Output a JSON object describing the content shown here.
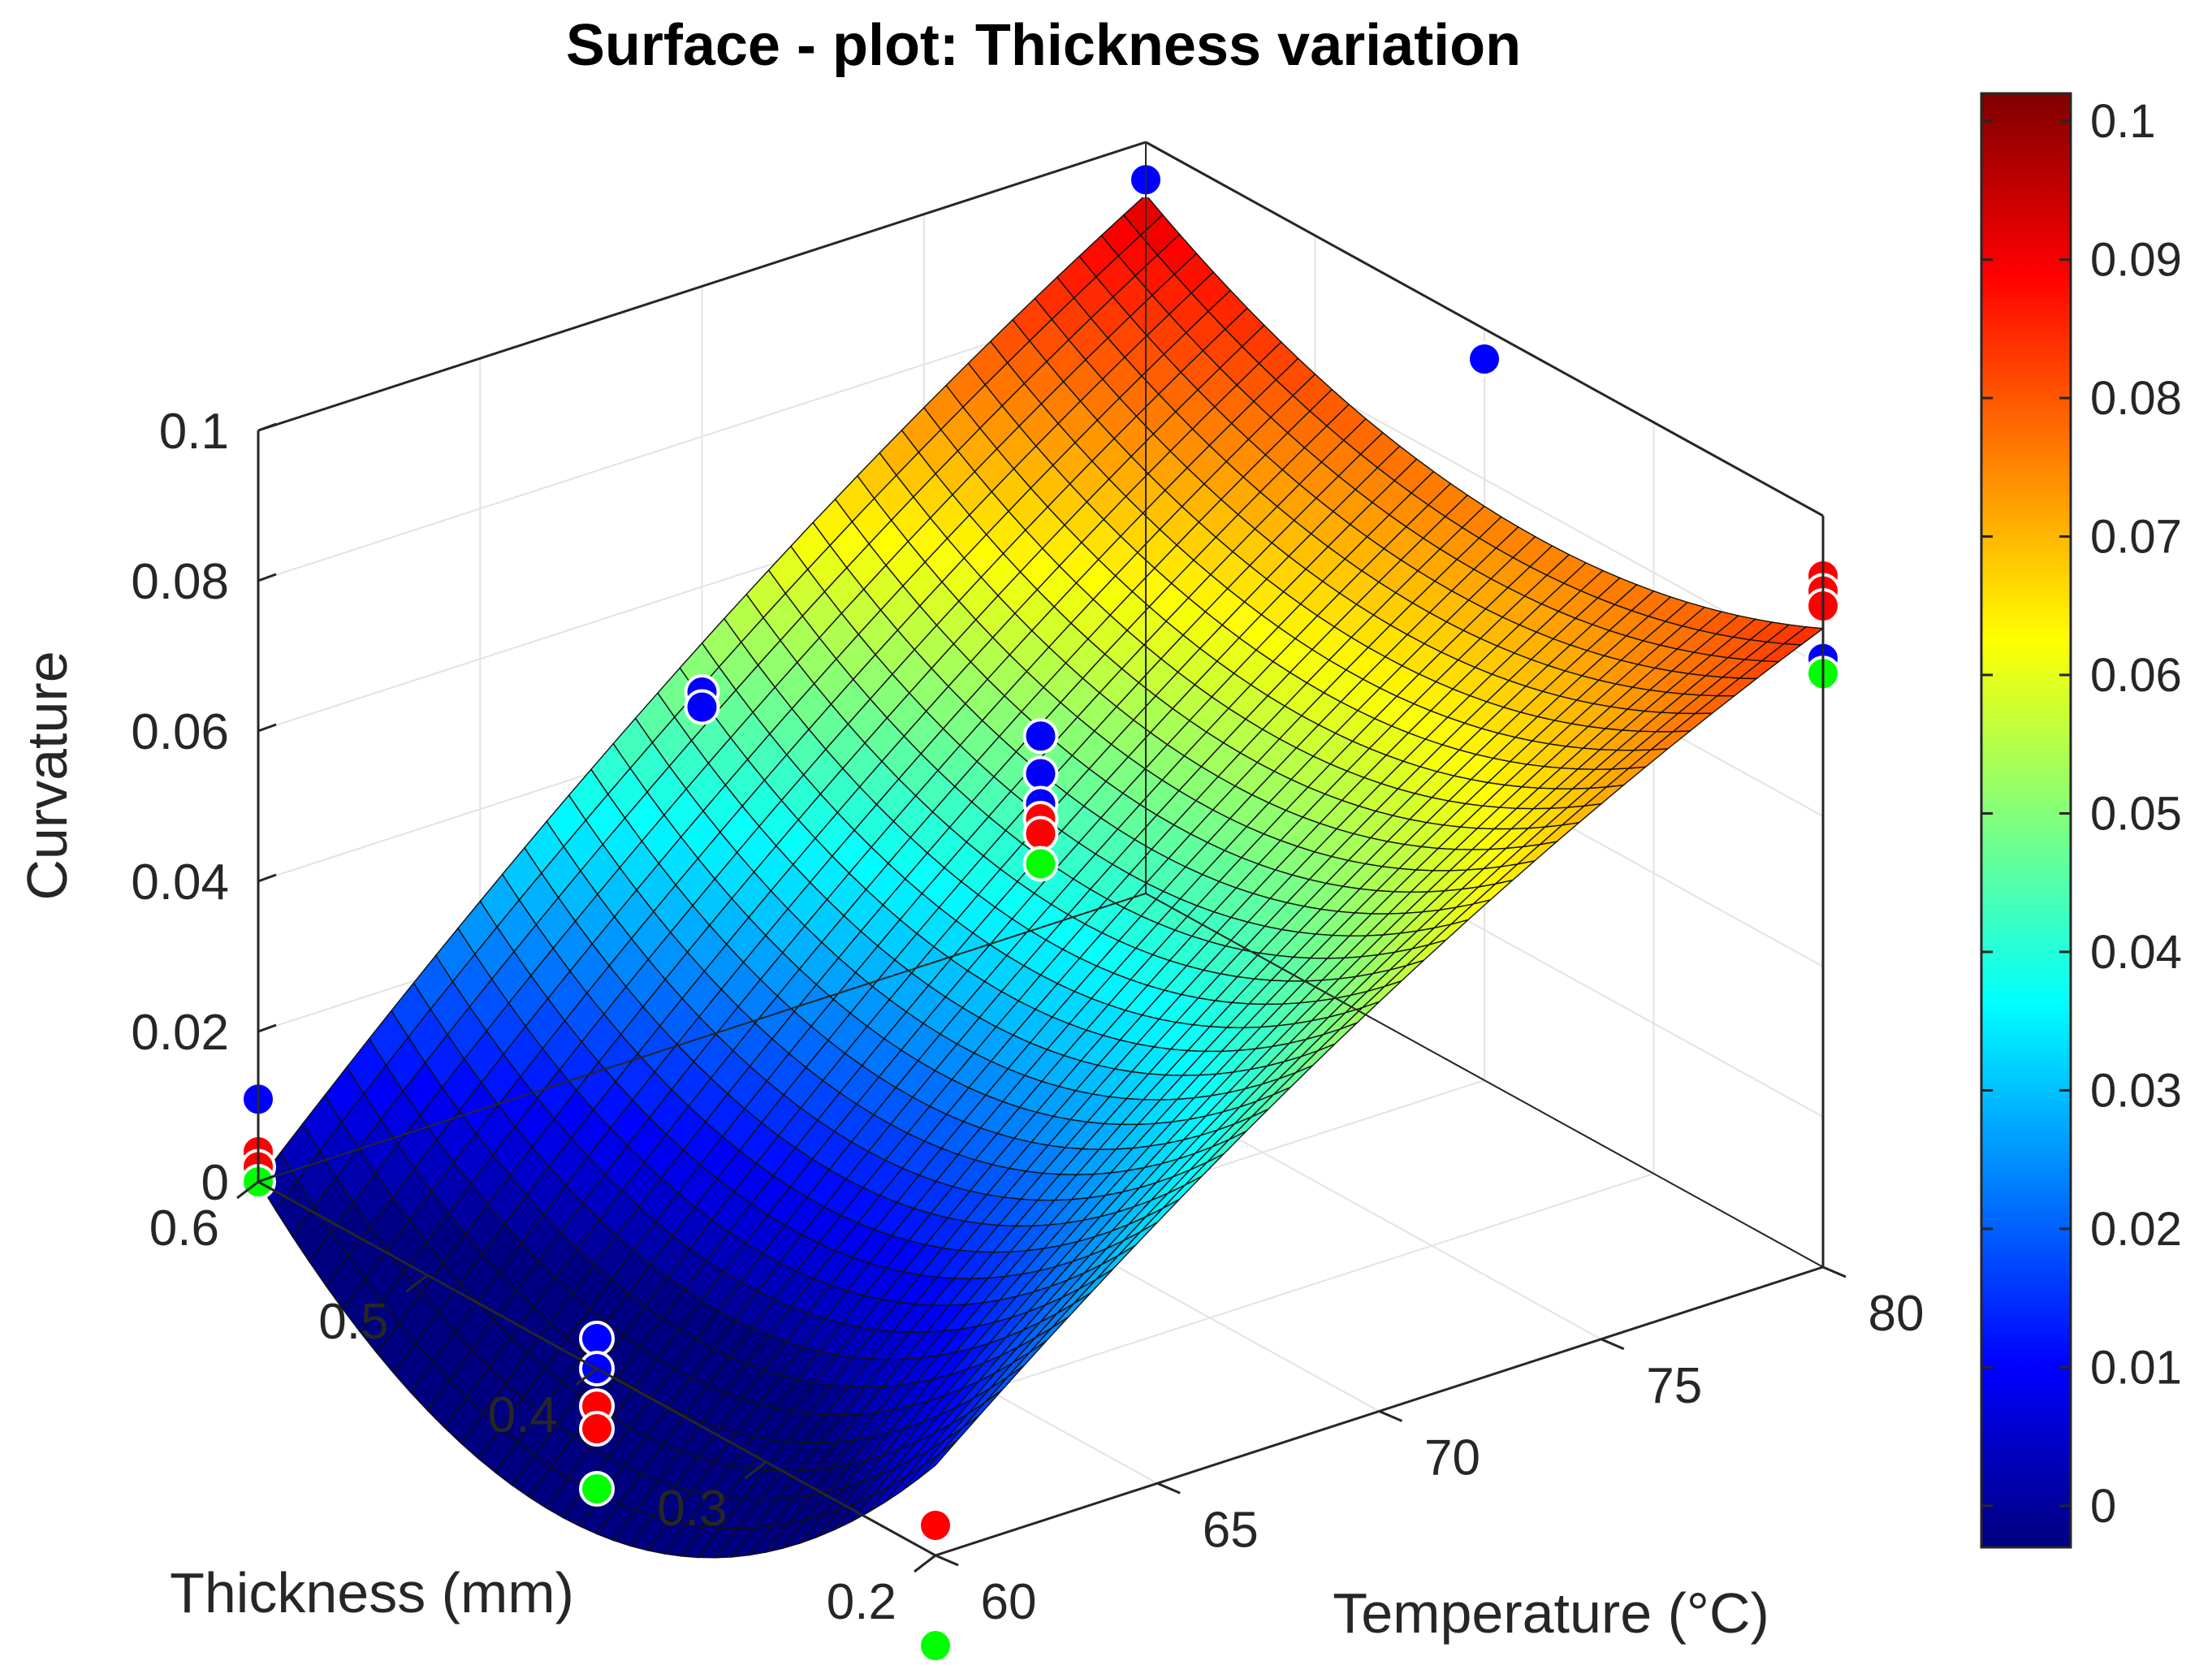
{
  "chart_data": {
    "type": "surface3d",
    "title": "Surface - plot: Thickness variation",
    "xlabel": "Temperature (°C)",
    "ylabel": "Thickness (mm)",
    "zlabel": "Curvature",
    "x_ticks": [
      "60",
      "65",
      "70",
      "75",
      "80"
    ],
    "y_ticks": [
      "0.2",
      "0.3",
      "0.4",
      "0.5",
      "0.6"
    ],
    "z_ticks": [
      "0",
      "0.02",
      "0.04",
      "0.06",
      "0.08",
      "0.1"
    ],
    "colorbar_ticks": [
      "0",
      "0.01",
      "0.02",
      "0.03",
      "0.04",
      "0.05",
      "0.06",
      "0.07",
      "0.08",
      "0.09",
      "0.1"
    ],
    "xlim": [
      60,
      80
    ],
    "ylim": [
      0.2,
      0.6
    ],
    "zlim": [
      0,
      0.1
    ],
    "clim": [
      -0.003,
      0.102
    ],
    "grid": true,
    "colormap": "jet",
    "surface": {
      "description": "Fitted quadratic surface of curvature over temperature and thickness",
      "corners": [
        {
          "temperature": 60,
          "thickness": 0.6,
          "curvature": 0.0
        },
        {
          "temperature": 60,
          "thickness": 0.2,
          "curvature": 0.012
        },
        {
          "temperature": 80,
          "thickness": 0.6,
          "curvature": 0.093
        },
        {
          "temperature": 80,
          "thickness": 0.2,
          "curvature": 0.085
        }
      ]
    },
    "scatter_series": [
      {
        "name": "Blue points",
        "color": "#0000ff",
        "points": [
          {
            "temperature": 60,
            "thickness": 0.6,
            "curvature": 0.011
          },
          {
            "temperature": 60,
            "thickness": 0.4,
            "curvature": 0.004
          },
          {
            "temperature": 60,
            "thickness": 0.4,
            "curvature": 0.0
          },
          {
            "temperature": 70,
            "thickness": 0.6,
            "curvature": 0.046
          },
          {
            "temperature": 70,
            "thickness": 0.6,
            "curvature": 0.044
          },
          {
            "temperature": 70,
            "thickness": 0.4,
            "curvature": 0.065
          },
          {
            "temperature": 70,
            "thickness": 0.4,
            "curvature": 0.06
          },
          {
            "temperature": 70,
            "thickness": 0.4,
            "curvature": 0.056
          },
          {
            "temperature": 80,
            "thickness": 0.6,
            "curvature": 0.095
          },
          {
            "temperature": 80,
            "thickness": 0.4,
            "curvature": 0.096
          },
          {
            "temperature": 80,
            "thickness": 0.2,
            "curvature": 0.081
          }
        ]
      },
      {
        "name": "Red points",
        "color": "#ff0000",
        "points": [
          {
            "temperature": 60,
            "thickness": 0.6,
            "curvature": 0.004
          },
          {
            "temperature": 60,
            "thickness": 0.6,
            "curvature": 0.002
          },
          {
            "temperature": 60,
            "thickness": 0.4,
            "curvature": -0.005
          },
          {
            "temperature": 60,
            "thickness": 0.4,
            "curvature": -0.008
          },
          {
            "temperature": 60,
            "thickness": 0.2,
            "curvature": 0.004
          },
          {
            "temperature": 70,
            "thickness": 0.4,
            "curvature": 0.054
          },
          {
            "temperature": 70,
            "thickness": 0.4,
            "curvature": 0.052
          },
          {
            "temperature": 80,
            "thickness": 0.2,
            "curvature": 0.092
          },
          {
            "temperature": 80,
            "thickness": 0.2,
            "curvature": 0.09
          },
          {
            "temperature": 80,
            "thickness": 0.2,
            "curvature": 0.088
          }
        ]
      },
      {
        "name": "Green points",
        "color": "#00ff00",
        "points": [
          {
            "temperature": 60,
            "thickness": 0.6,
            "curvature": 0.0
          },
          {
            "temperature": 60,
            "thickness": 0.4,
            "curvature": -0.016
          },
          {
            "temperature": 60,
            "thickness": 0.2,
            "curvature": -0.012
          },
          {
            "temperature": 70,
            "thickness": 0.4,
            "curvature": 0.048
          },
          {
            "temperature": 80,
            "thickness": 0.2,
            "curvature": 0.079
          }
        ]
      }
    ]
  }
}
